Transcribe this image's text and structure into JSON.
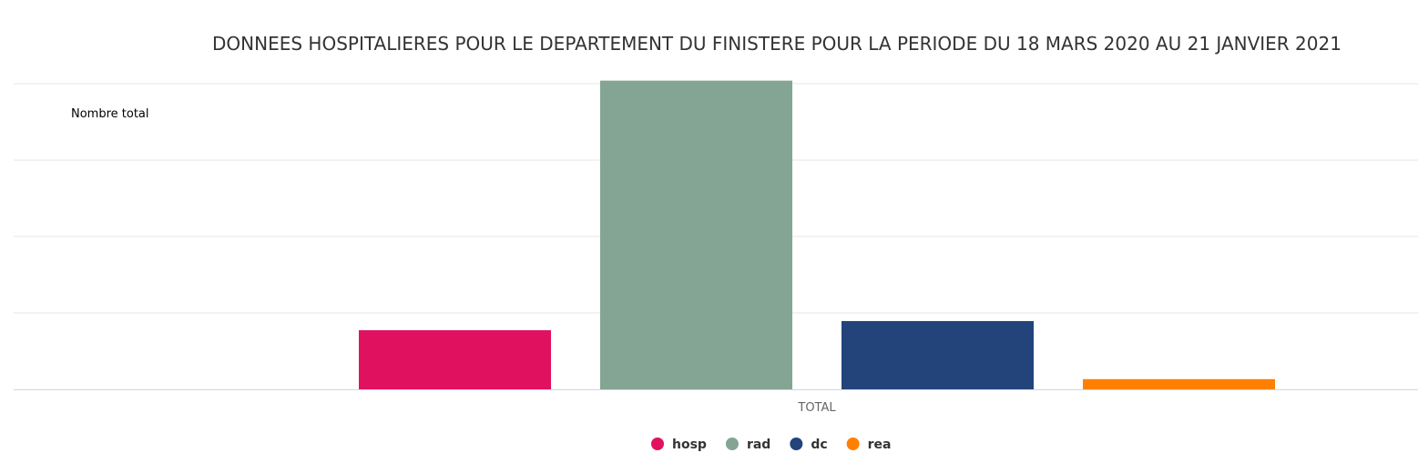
{
  "chart_data": {
    "type": "bar",
    "title": "DONNEES HOSPITALIERES POUR LE DEPARTEMENT DU FINISTERE POUR LA PERIODE DU 18 MARS 2020 AU 21 JANVIER 2021",
    "ylabel": "Nombre total",
    "xlabel": "",
    "categories": [
      "TOTAL"
    ],
    "ylim": [
      0,
      1500
    ],
    "grid": true,
    "legend_position": "bottom-center",
    "series": [
      {
        "name": "hosp",
        "color": "#e0115f",
        "values": [
          290
        ]
      },
      {
        "name": "rad",
        "color": "#84a593",
        "values": [
          1515
        ]
      },
      {
        "name": "dc",
        "color": "#23437b",
        "values": [
          335
        ]
      },
      {
        "name": "rea",
        "color": "#ff8000",
        "values": [
          50
        ]
      }
    ]
  }
}
